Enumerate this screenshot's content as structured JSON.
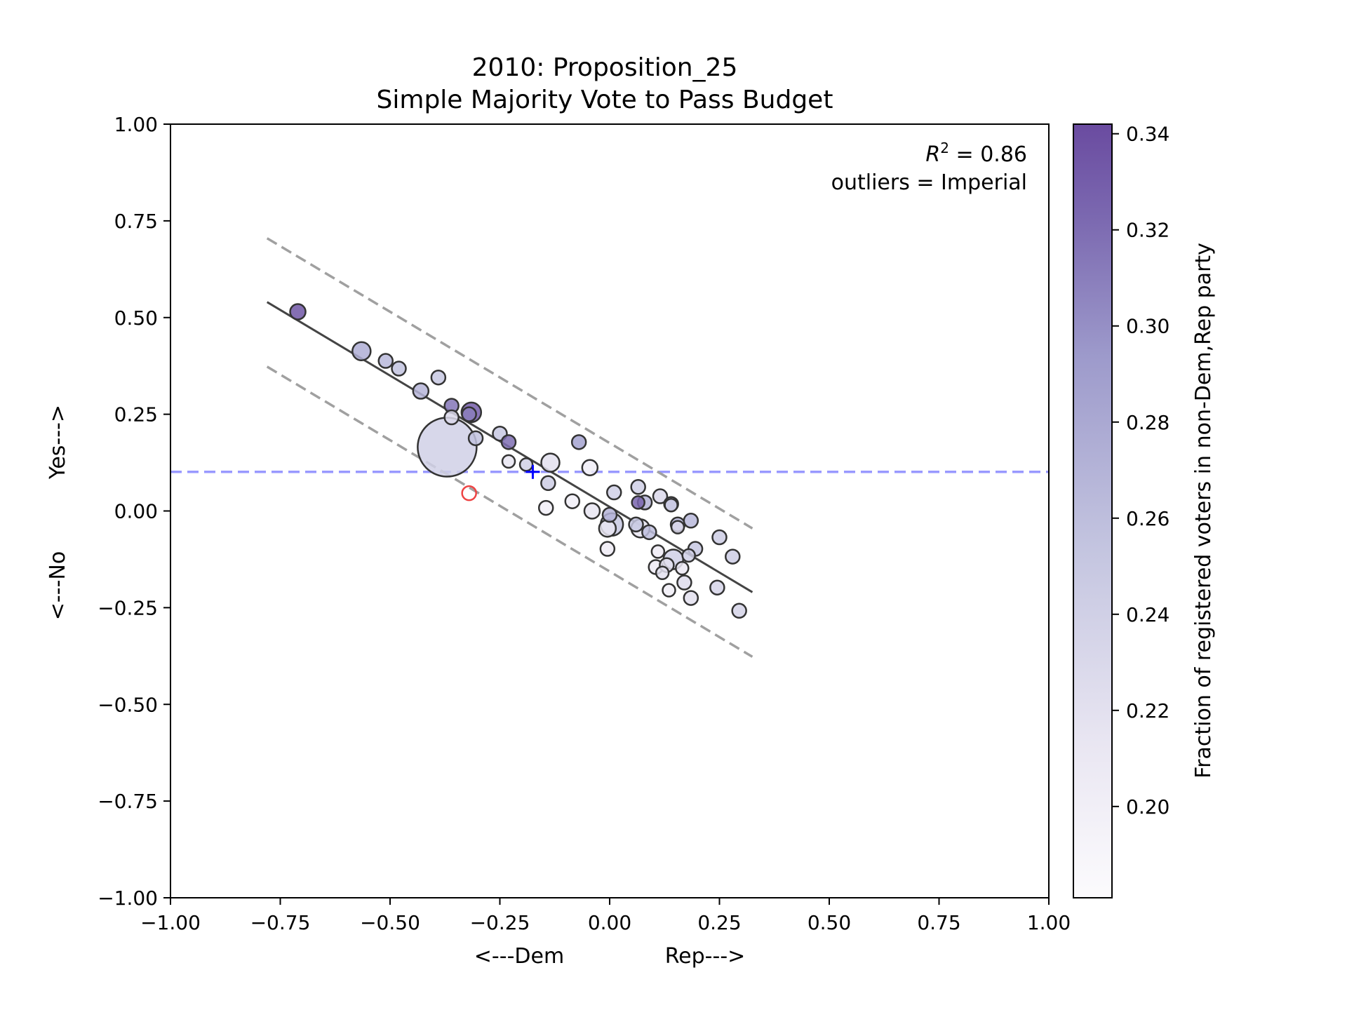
{
  "chart_data": {
    "type": "scatter",
    "title_line1": "2010: Proposition_25",
    "title_line2": "Simple Majority Vote to Pass Budget",
    "xlabel_left": "<---Dem",
    "xlabel_right": "Rep--->",
    "ylabel_bottom": "<---No",
    "ylabel_top": "Yes--->",
    "xlim": [
      -1.0,
      1.0
    ],
    "ylim": [
      -1.0,
      1.0
    ],
    "xticks": [
      -1.0,
      -0.75,
      -0.5,
      -0.25,
      0.0,
      0.25,
      0.5,
      0.75,
      1.0
    ],
    "yticks": [
      -1.0,
      -0.75,
      -0.5,
      -0.25,
      0.0,
      0.25,
      0.5,
      0.75,
      1.0
    ],
    "xtick_labels": [
      "−1.00",
      "−0.75",
      "−0.50",
      "−0.25",
      "0.00",
      "0.25",
      "0.50",
      "0.75",
      "1.00"
    ],
    "ytick_labels": [
      "−1.00",
      "−0.75",
      "−0.50",
      "−0.25",
      "0.00",
      "0.25",
      "0.50",
      "0.75",
      "1.00"
    ],
    "annotation_r2_prefix": "R",
    "annotation_r2_exp": "2",
    "annotation_r2_value": " = 0.86",
    "annotation_outliers": "outliers = Imperial",
    "colorbar": {
      "label": "Fraction of registered voters in non-Dem,Rep party",
      "range": [
        0.181,
        0.342
      ],
      "ticks": [
        0.2,
        0.22,
        0.24,
        0.26,
        0.28,
        0.3,
        0.32,
        0.34
      ],
      "tick_labels": [
        "0.20",
        "0.22",
        "0.24",
        "0.26",
        "0.28",
        "0.30",
        "0.32",
        "0.34"
      ],
      "colormap": "Purples"
    },
    "threshold_line": {
      "y": 0.101,
      "color": "#9999ff"
    },
    "fit_line": {
      "x": [
        -0.78,
        0.325
      ],
      "y": [
        0.54,
        -0.21
      ]
    },
    "band_upper": {
      "x": [
        -0.78,
        0.325
      ],
      "y": [
        0.705,
        -0.045
      ]
    },
    "band_lower": {
      "x": [
        -0.78,
        0.325
      ],
      "y": [
        0.373,
        -0.377
      ]
    },
    "mean_marker": {
      "x": -0.175,
      "y": 0.101,
      "color": "#0000ff"
    },
    "outlier_points": [
      {
        "x": -0.32,
        "y": 0.046,
        "color": "#ee4444"
      }
    ],
    "points": [
      {
        "x": -0.71,
        "y": 0.515,
        "c": 0.335,
        "s": 11
      },
      {
        "x": -0.565,
        "y": 0.413,
        "c": 0.275,
        "s": 13
      },
      {
        "x": -0.51,
        "y": 0.388,
        "c": 0.265,
        "s": 10
      },
      {
        "x": -0.48,
        "y": 0.368,
        "c": 0.255,
        "s": 10
      },
      {
        "x": -0.39,
        "y": 0.345,
        "c": 0.25,
        "s": 10
      },
      {
        "x": -0.43,
        "y": 0.31,
        "c": 0.268,
        "s": 11
      },
      {
        "x": -0.36,
        "y": 0.272,
        "c": 0.315,
        "s": 10
      },
      {
        "x": -0.315,
        "y": 0.255,
        "c": 0.33,
        "s": 14
      },
      {
        "x": -0.32,
        "y": 0.25,
        "c": 0.31,
        "s": 10
      },
      {
        "x": -0.36,
        "y": 0.242,
        "c": 0.23,
        "s": 10
      },
      {
        "x": -0.305,
        "y": 0.188,
        "c": 0.255,
        "s": 10
      },
      {
        "x": -0.25,
        "y": 0.2,
        "c": 0.25,
        "s": 10
      },
      {
        "x": -0.23,
        "y": 0.178,
        "c": 0.32,
        "s": 10
      },
      {
        "x": -0.23,
        "y": 0.128,
        "c": 0.215,
        "s": 9
      },
      {
        "x": -0.19,
        "y": 0.12,
        "c": 0.24,
        "s": 9
      },
      {
        "x": -0.37,
        "y": 0.165,
        "c": 0.24,
        "s": 42
      },
      {
        "x": -0.135,
        "y": 0.125,
        "c": 0.22,
        "s": 13
      },
      {
        "x": -0.14,
        "y": 0.072,
        "c": 0.245,
        "s": 10
      },
      {
        "x": -0.145,
        "y": 0.008,
        "c": 0.2,
        "s": 10
      },
      {
        "x": -0.07,
        "y": 0.178,
        "c": 0.285,
        "s": 10
      },
      {
        "x": -0.045,
        "y": 0.112,
        "c": 0.2,
        "s": 11
      },
      {
        "x": -0.085,
        "y": 0.025,
        "c": 0.2,
        "s": 10
      },
      {
        "x": -0.04,
        "y": 0.0,
        "c": 0.215,
        "s": 11
      },
      {
        "x": 0.01,
        "y": 0.048,
        "c": 0.24,
        "s": 10
      },
      {
        "x": 0.0,
        "y": -0.01,
        "c": 0.27,
        "s": 10
      },
      {
        "x": 0.005,
        "y": -0.035,
        "c": 0.25,
        "s": 16
      },
      {
        "x": -0.005,
        "y": -0.045,
        "c": 0.215,
        "s": 12
      },
      {
        "x": -0.005,
        "y": -0.098,
        "c": 0.205,
        "s": 10
      },
      {
        "x": 0.065,
        "y": 0.062,
        "c": 0.24,
        "s": 10
      },
      {
        "x": 0.065,
        "y": 0.022,
        "c": 0.325,
        "s": 9
      },
      {
        "x": 0.08,
        "y": 0.022,
        "c": 0.27,
        "s": 10
      },
      {
        "x": 0.06,
        "y": -0.035,
        "c": 0.25,
        "s": 10
      },
      {
        "x": 0.07,
        "y": -0.045,
        "c": 0.215,
        "s": 13
      },
      {
        "x": 0.09,
        "y": -0.055,
        "c": 0.26,
        "s": 10
      },
      {
        "x": 0.115,
        "y": 0.038,
        "c": 0.23,
        "s": 10
      },
      {
        "x": 0.14,
        "y": 0.018,
        "c": 0.265,
        "s": 10
      },
      {
        "x": 0.14,
        "y": 0.015,
        "c": 0.245,
        "s": 9
      },
      {
        "x": 0.155,
        "y": -0.035,
        "c": 0.265,
        "s": 10
      },
      {
        "x": 0.155,
        "y": -0.042,
        "c": 0.23,
        "s": 9
      },
      {
        "x": 0.185,
        "y": -0.025,
        "c": 0.265,
        "s": 10
      },
      {
        "x": 0.195,
        "y": -0.098,
        "c": 0.25,
        "s": 10
      },
      {
        "x": 0.18,
        "y": -0.115,
        "c": 0.24,
        "s": 9
      },
      {
        "x": 0.11,
        "y": -0.105,
        "c": 0.205,
        "s": 9
      },
      {
        "x": 0.145,
        "y": -0.125,
        "c": 0.24,
        "s": 14
      },
      {
        "x": 0.105,
        "y": -0.145,
        "c": 0.205,
        "s": 10
      },
      {
        "x": 0.13,
        "y": -0.14,
        "c": 0.22,
        "s": 10
      },
      {
        "x": 0.12,
        "y": -0.16,
        "c": 0.22,
        "s": 9
      },
      {
        "x": 0.165,
        "y": -0.148,
        "c": 0.21,
        "s": 9
      },
      {
        "x": 0.17,
        "y": -0.185,
        "c": 0.225,
        "s": 10
      },
      {
        "x": 0.135,
        "y": -0.205,
        "c": 0.2,
        "s": 9
      },
      {
        "x": 0.185,
        "y": -0.225,
        "c": 0.22,
        "s": 10
      },
      {
        "x": 0.25,
        "y": -0.068,
        "c": 0.245,
        "s": 10
      },
      {
        "x": 0.28,
        "y": -0.118,
        "c": 0.245,
        "s": 10
      },
      {
        "x": 0.245,
        "y": -0.198,
        "c": 0.235,
        "s": 10
      },
      {
        "x": 0.295,
        "y": -0.258,
        "c": 0.235,
        "s": 10
      }
    ]
  }
}
